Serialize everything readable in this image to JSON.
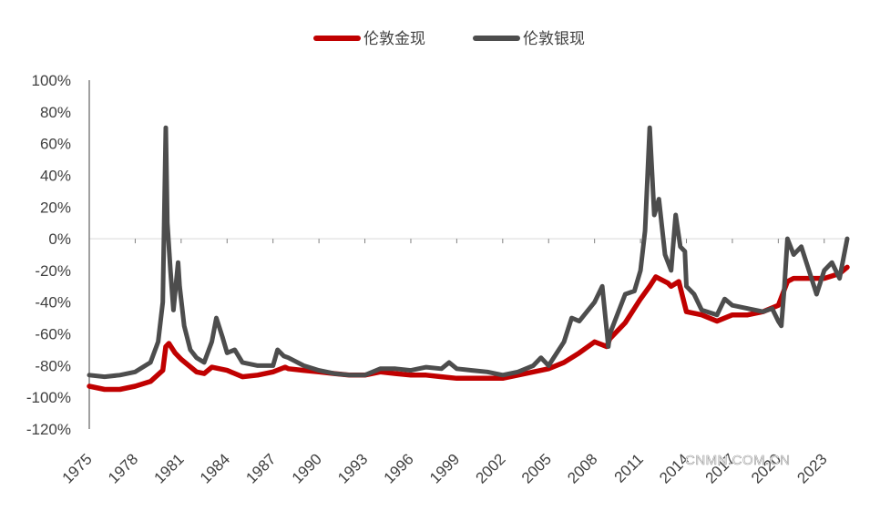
{
  "watermark": "CNMN.COM.CN",
  "colors": {
    "gold": "#c00000",
    "silver": "#4d4d4d",
    "axis": "#808080",
    "zero_line": "#d9d9d9",
    "text": "#404040"
  },
  "chart_data": {
    "type": "line",
    "title": "",
    "xlabel": "",
    "ylabel": "",
    "legend_position": "top-center",
    "grid": false,
    "ylim": [
      -120,
      100
    ],
    "xlim": [
      1975,
      2024.5
    ],
    "y_ticks": [
      100,
      80,
      60,
      40,
      20,
      0,
      -20,
      -40,
      -60,
      -80,
      -100,
      -120
    ],
    "y_tick_labels": [
      "100%",
      "80%",
      "60%",
      "40%",
      "20%",
      "0%",
      "-20%",
      "-40%",
      "-60%",
      "-80%",
      "-100%",
      "-120%"
    ],
    "x_ticks": [
      1975,
      1978,
      1981,
      1984,
      1987,
      1990,
      1993,
      1996,
      1999,
      2002,
      2005,
      2008,
      2011,
      2014,
      2017,
      2020,
      2023
    ],
    "x_tick_labels": [
      "1975",
      "1978",
      "1981",
      "1984",
      "1987",
      "1990",
      "1993",
      "1996",
      "1999",
      "2002",
      "2005",
      "2008",
      "2011",
      "2014",
      "2017",
      "2020",
      "2023"
    ],
    "series": [
      {
        "name": "伦敦金现",
        "color": "#c00000",
        "x": [
          1975,
          1976,
          1977,
          1978,
          1979,
          1979.8,
          1980.0,
          1980.2,
          1980.6,
          1981,
          1981.5,
          1982,
          1982.5,
          1983,
          1983.5,
          1984,
          1985,
          1986,
          1987,
          1987.8,
          1988,
          1989,
          1990,
          1991,
          1992,
          1993,
          1994,
          1995,
          1996,
          1997,
          1998,
          1999,
          2000,
          2001,
          2002,
          2003,
          2004,
          2005,
          2006,
          2007,
          2008,
          2008.8,
          2009,
          2010,
          2011,
          2011.6,
          2012,
          2012.8,
          2013,
          2013.5,
          2014,
          2015,
          2016,
          2017,
          2018,
          2019,
          2020,
          2020.6,
          2021,
          2022,
          2023,
          2024,
          2024.5
        ],
        "y": [
          -93,
          -95,
          -95,
          -93,
          -90,
          -83,
          -68,
          -66,
          -72,
          -76,
          -80,
          -84,
          -85,
          -81,
          -82,
          -83,
          -87,
          -86,
          -84,
          -81,
          -82,
          -83,
          -84,
          -85,
          -86,
          -86,
          -84,
          -85,
          -86,
          -86,
          -87,
          -88,
          -88,
          -88,
          -88,
          -86,
          -84,
          -82,
          -78,
          -72,
          -65,
          -68,
          -63,
          -53,
          -38,
          -30,
          -24,
          -28,
          -30,
          -27,
          -46,
          -48,
          -52,
          -48,
          -48,
          -46,
          -42,
          -27,
          -25,
          -25,
          -25,
          -22,
          -18
        ]
      },
      {
        "name": "伦敦银现",
        "color": "#4d4d4d",
        "x": [
          1975,
          1976,
          1977,
          1978,
          1979,
          1979.5,
          1979.8,
          1980.0,
          1980.1,
          1980.3,
          1980.5,
          1980.8,
          1980.9,
          1981.2,
          1981.6,
          1982,
          1982.5,
          1983,
          1983.3,
          1983.7,
          1984,
          1984.5,
          1985,
          1986,
          1987,
          1987.3,
          1987.7,
          1988,
          1989,
          1990,
          1991,
          1992,
          1993,
          1994,
          1995,
          1996,
          1997,
          1998,
          1998.5,
          1999,
          2000,
          2001,
          2002,
          2003,
          2004,
          2004.5,
          2005,
          2006,
          2006.5,
          2007,
          2008,
          2008.5,
          2008.9,
          2009,
          2010,
          2010.6,
          2011,
          2011.3,
          2011.6,
          2011.9,
          2012.2,
          2012.6,
          2013,
          2013.3,
          2013.6,
          2013.9,
          2014,
          2014.5,
          2015,
          2016,
          2016.5,
          2017,
          2018,
          2019,
          2019.6,
          2020.0,
          2020.2,
          2020.4,
          2020.6,
          2021,
          2021.5,
          2022,
          2022.5,
          2023,
          2023.5,
          2024,
          2024.5
        ],
        "y": [
          -86,
          -87,
          -86,
          -84,
          -78,
          -65,
          -40,
          70,
          10,
          -20,
          -45,
          -15,
          -30,
          -55,
          -70,
          -75,
          -78,
          -65,
          -50,
          -62,
          -72,
          -70,
          -78,
          -80,
          -80,
          -70,
          -74,
          -75,
          -80,
          -83,
          -85,
          -86,
          -86,
          -82,
          -82,
          -83,
          -81,
          -82,
          -78,
          -82,
          -83,
          -84,
          -86,
          -84,
          -80,
          -75,
          -80,
          -65,
          -50,
          -52,
          -40,
          -30,
          -68,
          -60,
          -35,
          -33,
          -20,
          5,
          70,
          15,
          25,
          -10,
          -20,
          15,
          -5,
          -8,
          -30,
          -35,
          -45,
          -48,
          -38,
          -42,
          -44,
          -46,
          -44,
          -52,
          -55,
          -30,
          0,
          -10,
          -5,
          -20,
          -35,
          -20,
          -15,
          -25,
          0
        ]
      }
    ]
  }
}
